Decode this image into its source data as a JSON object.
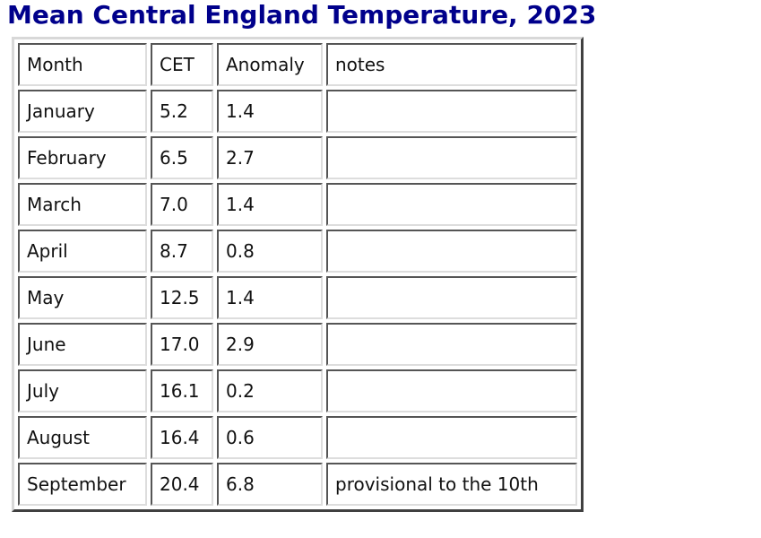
{
  "title": "Mean Central England Temperature, 2023",
  "colors": {
    "title": "#00008b"
  },
  "table": {
    "headers": [
      "Month",
      "CET",
      "Anomaly",
      "notes"
    ],
    "rows": [
      [
        "January",
        "5.2",
        "1.4",
        ""
      ],
      [
        "February",
        "6.5",
        "2.7",
        ""
      ],
      [
        "March",
        "7.0",
        "1.4",
        ""
      ],
      [
        "April",
        "8.7",
        "0.8",
        ""
      ],
      [
        "May",
        "12.5",
        "1.4",
        ""
      ],
      [
        "June",
        "17.0",
        "2.9",
        ""
      ],
      [
        "July",
        "16.1",
        "0.2",
        ""
      ],
      [
        "August",
        "16.4",
        "0.6",
        ""
      ],
      [
        "September",
        "20.4",
        "6.8",
        "provisional to the 10th"
      ]
    ]
  }
}
